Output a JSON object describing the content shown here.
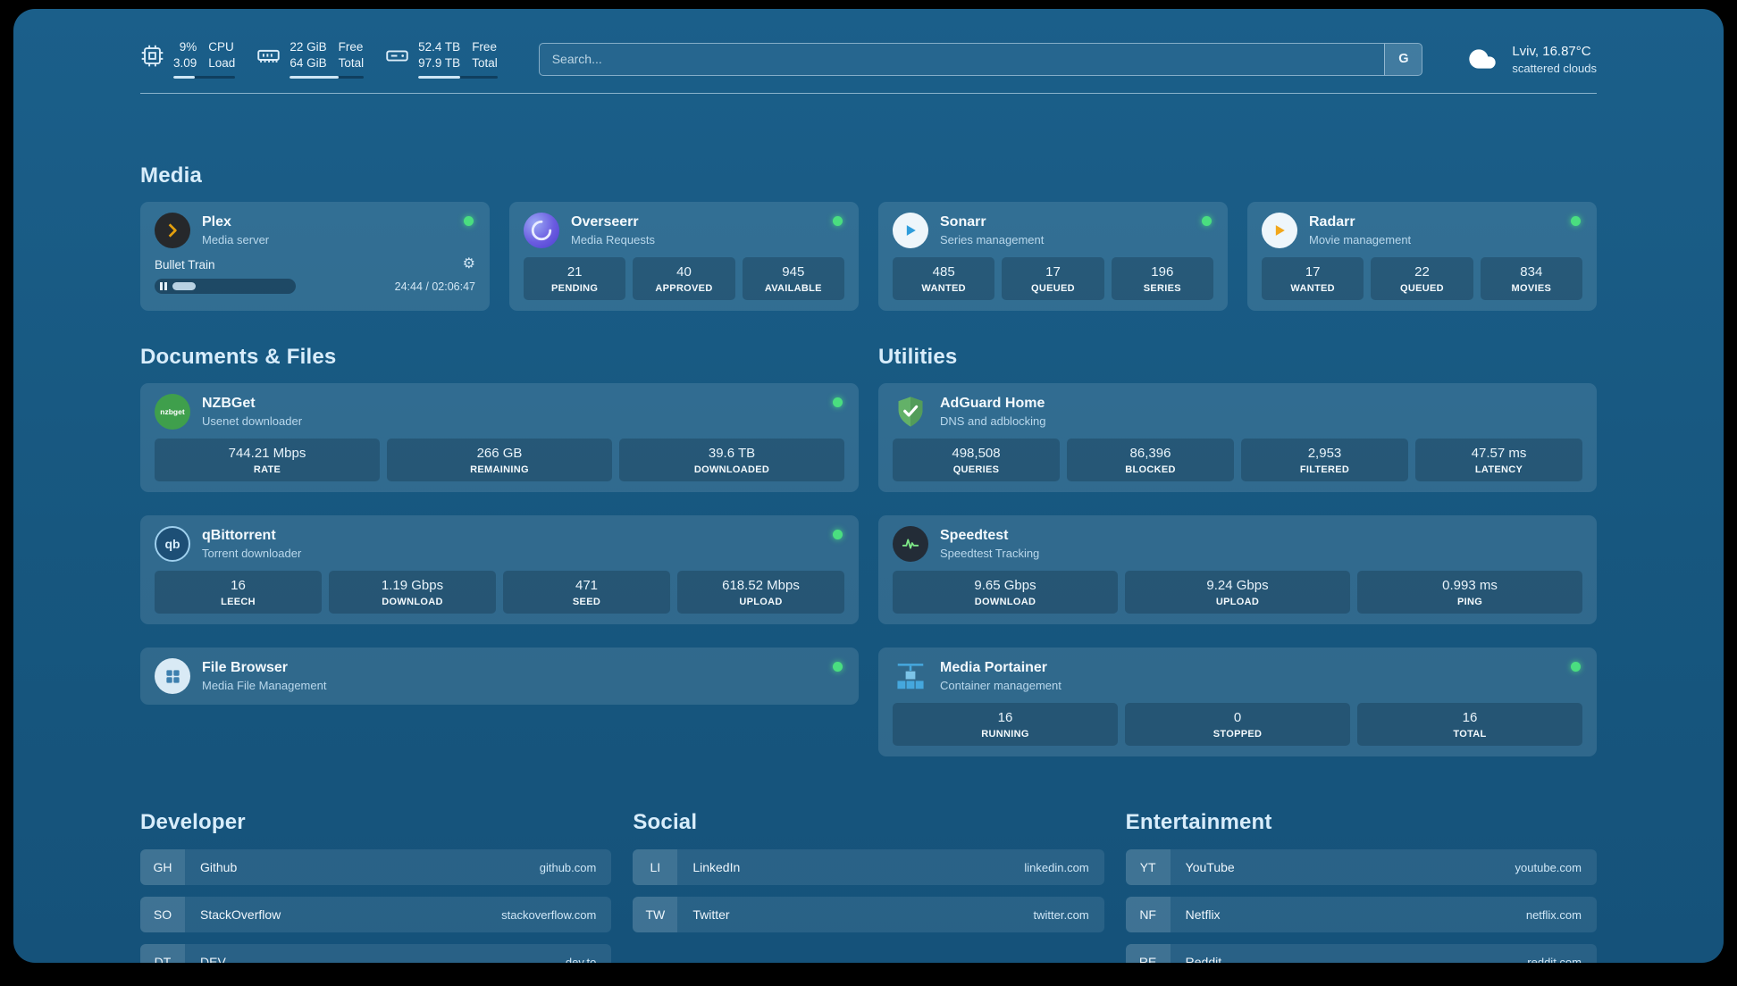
{
  "colors": {
    "background": "#17577f",
    "card": "#2e6e96",
    "status_online": "#4ade80",
    "plex_accent": "#e5a00d"
  },
  "topbar": {
    "stats": [
      {
        "values": [
          "9%",
          "3.09"
        ],
        "labels": [
          "CPU",
          "Load"
        ],
        "progress_pct": 35
      },
      {
        "values": [
          "22 GiB",
          "64 GiB"
        ],
        "labels": [
          "Free",
          "Total"
        ],
        "progress_pct": 66
      },
      {
        "values": [
          "52.4 TB",
          "97.9 TB"
        ],
        "labels": [
          "Free",
          "Total"
        ],
        "progress_pct": 53
      }
    ],
    "search": {
      "placeholder": "Search...",
      "button_label": "G"
    },
    "weather": {
      "location": "Lviv, 16.87°C",
      "condition": "scattered clouds"
    }
  },
  "sections": {
    "media": {
      "title": "Media"
    },
    "documents": {
      "title": "Documents & Files"
    },
    "utilities": {
      "title": "Utilities"
    }
  },
  "services": {
    "plex": {
      "name": "Plex",
      "subtitle": "Media server",
      "online": true,
      "player": {
        "track": "Bullet Train",
        "time": "24:44 / 02:06:47",
        "progress_pct": 20
      }
    },
    "overseerr": {
      "name": "Overseerr",
      "subtitle": "Media Requests",
      "online": true,
      "stats": [
        {
          "value": "21",
          "label": "PENDING"
        },
        {
          "value": "40",
          "label": "APPROVED"
        },
        {
          "value": "945",
          "label": "AVAILABLE"
        }
      ]
    },
    "sonarr": {
      "name": "Sonarr",
      "subtitle": "Series management",
      "online": true,
      "stats": [
        {
          "value": "485",
          "label": "WANTED"
        },
        {
          "value": "17",
          "label": "QUEUED"
        },
        {
          "value": "196",
          "label": "SERIES"
        }
      ]
    },
    "radarr": {
      "name": "Radarr",
      "subtitle": "Movie management",
      "online": true,
      "stats": [
        {
          "value": "17",
          "label": "WANTED"
        },
        {
          "value": "22",
          "label": "QUEUED"
        },
        {
          "value": "834",
          "label": "MOVIES"
        }
      ]
    },
    "nzbget": {
      "name": "NZBGet",
      "subtitle": "Usenet downloader",
      "online": true,
      "icon_label": "nzbget",
      "stats": [
        {
          "value": "744.21 Mbps",
          "label": "RATE"
        },
        {
          "value": "266 GB",
          "label": "REMAINING"
        },
        {
          "value": "39.6 TB",
          "label": "DOWNLOADED"
        }
      ]
    },
    "qbittorrent": {
      "name": "qBittorrent",
      "subtitle": "Torrent downloader",
      "online": true,
      "icon_label": "qb",
      "stats": [
        {
          "value": "16",
          "label": "LEECH"
        },
        {
          "value": "1.19 Gbps",
          "label": "DOWNLOAD"
        },
        {
          "value": "471",
          "label": "SEED"
        },
        {
          "value": "618.52 Mbps",
          "label": "UPLOAD"
        }
      ]
    },
    "filebrowser": {
      "name": "File Browser",
      "subtitle": "Media File Management",
      "online": true
    },
    "adguard": {
      "name": "AdGuard Home",
      "subtitle": "DNS and adblocking",
      "stats": [
        {
          "value": "498,508",
          "label": "QUERIES"
        },
        {
          "value": "86,396",
          "label": "BLOCKED"
        },
        {
          "value": "2,953",
          "label": "FILTERED"
        },
        {
          "value": "47.57 ms",
          "label": "LATENCY"
        }
      ]
    },
    "speedtest": {
      "name": "Speedtest",
      "subtitle": "Speedtest Tracking",
      "stats": [
        {
          "value": "9.65 Gbps",
          "label": "DOWNLOAD"
        },
        {
          "value": "9.24 Gbps",
          "label": "UPLOAD"
        },
        {
          "value": "0.993 ms",
          "label": "PING"
        }
      ]
    },
    "portainer": {
      "name": "Media Portainer",
      "subtitle": "Container management",
      "online": true,
      "stats": [
        {
          "value": "16",
          "label": "RUNNING"
        },
        {
          "value": "0",
          "label": "STOPPED"
        },
        {
          "value": "16",
          "label": "TOTAL"
        }
      ]
    }
  },
  "bookmarks": [
    {
      "title": "Developer",
      "links": [
        {
          "abbr": "GH",
          "name": "Github",
          "domain": "github.com"
        },
        {
          "abbr": "SO",
          "name": "StackOverflow",
          "domain": "stackoverflow.com"
        },
        {
          "abbr": "DT",
          "name": "DEV",
          "domain": "dev.to"
        }
      ]
    },
    {
      "title": "Social",
      "links": [
        {
          "abbr": "LI",
          "name": "LinkedIn",
          "domain": "linkedin.com"
        },
        {
          "abbr": "TW",
          "name": "Twitter",
          "domain": "twitter.com"
        }
      ]
    },
    {
      "title": "Entertainment",
      "links": [
        {
          "abbr": "YT",
          "name": "YouTube",
          "domain": "youtube.com"
        },
        {
          "abbr": "NF",
          "name": "Netflix",
          "domain": "netflix.com"
        },
        {
          "abbr": "RE",
          "name": "Reddit",
          "domain": "reddit.com"
        }
      ]
    }
  ]
}
